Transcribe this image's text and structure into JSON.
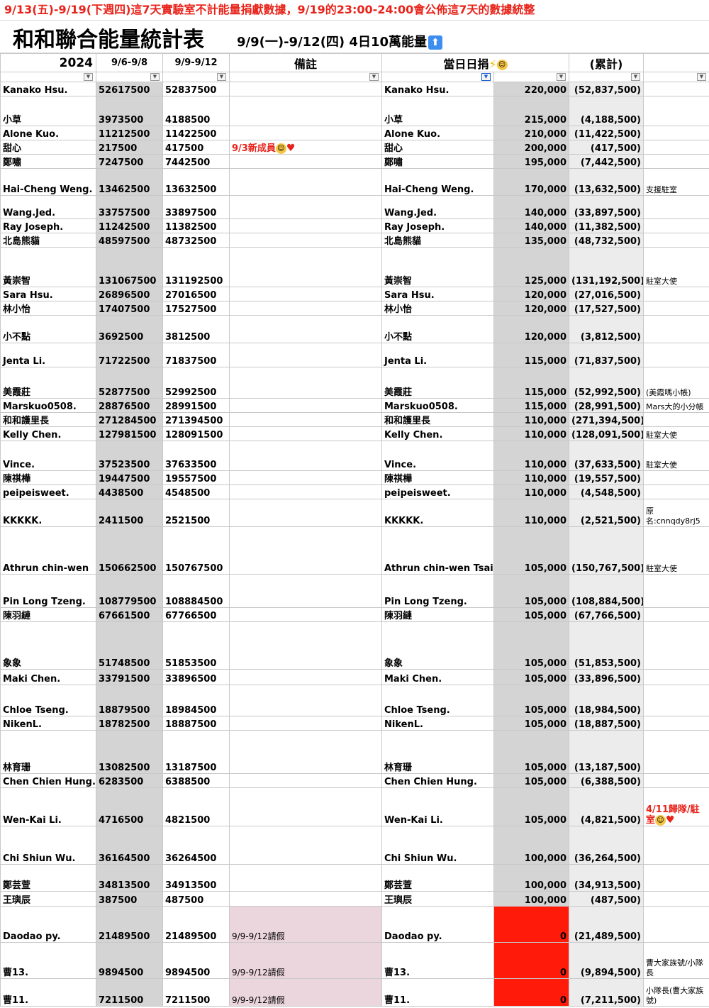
{
  "banner": "9/13(五)-9/19(下週四)這7天實驗室不計能量捐獻數據，9/19的23:00-24:00會公佈這7天的數據統整",
  "title": "和和聯合能量統計表",
  "subtitle": "9/9(一)-9/12(四) 4日10萬能量",
  "header": {
    "year": "2024",
    "col_a": "9/6-9/8",
    "col_b": "9/9-9/12",
    "remark": "備註",
    "daily": "當日日捐",
    "cumulative": "(累計)"
  },
  "icons": [
    "arrow-up-icon",
    "lightning-icon",
    "smiley-icon",
    "heart-icon",
    "filter-icon"
  ],
  "colors": {
    "red_cell": "#ff1a0a",
    "pink_cell": "#ecd6dd",
    "banner_text": "#e8231a",
    "gray_cell": "#d4d4d4"
  },
  "rows": [
    {
      "name": "Kanako Hsu.",
      "a": "52617500",
      "b": "52837500",
      "remark": "",
      "name2": "Kanako Hsu.",
      "daily": "220,000",
      "cum": "(52,837,500)",
      "side": ""
    },
    {
      "name": "小草",
      "a": "3973500",
      "b": "4188500",
      "remark": "",
      "name2": "小草",
      "daily": "215,000",
      "cum": "(4,188,500)",
      "side": ""
    },
    {
      "name": "Alone Kuo.",
      "a": "11212500",
      "b": "11422500",
      "remark": "",
      "name2": "Alone Kuo.",
      "daily": "210,000",
      "cum": "(11,422,500)",
      "side": ""
    },
    {
      "name": "甜心",
      "a": "217500",
      "b": "417500",
      "remark": "9/3新成員",
      "name2": "甜心",
      "daily": "200,000",
      "cum": "(417,500)",
      "side": ""
    },
    {
      "name": "鄭嘯",
      "a": "7247500",
      "b": "7442500",
      "remark": "",
      "name2": "鄭嘯",
      "daily": "195,000",
      "cum": "(7,442,500)",
      "side": ""
    },
    {
      "name": "Hai-Cheng Weng.",
      "a": "13462500",
      "b": "13632500",
      "remark": "",
      "name2": "Hai-Cheng Weng.",
      "daily": "170,000",
      "cum": "(13,632,500)",
      "side": "支援駐室"
    },
    {
      "name": "Wang.Jed.",
      "a": "33757500",
      "b": "33897500",
      "remark": "",
      "name2": "Wang.Jed.",
      "daily": "140,000",
      "cum": "(33,897,500)",
      "side": ""
    },
    {
      "name": "Ray Joseph.",
      "a": "11242500",
      "b": "11382500",
      "remark": "",
      "name2": "Ray Joseph.",
      "daily": "140,000",
      "cum": "(11,382,500)",
      "side": ""
    },
    {
      "name": "北島熊貓",
      "a": "48597500",
      "b": "48732500",
      "remark": "",
      "name2": "北島熊貓",
      "daily": "135,000",
      "cum": "(48,732,500)",
      "side": ""
    },
    {
      "name": "黃崇智",
      "a": "131067500",
      "b": "131192500",
      "remark": "",
      "name2": "黃崇智",
      "daily": "125,000",
      "cum": "(131,192,500)",
      "side": "駐室大使"
    },
    {
      "name": "Sara Hsu.",
      "a": "26896500",
      "b": "27016500",
      "remark": "",
      "name2": "Sara Hsu.",
      "daily": "120,000",
      "cum": "(27,016,500)",
      "side": ""
    },
    {
      "name": "林小怡",
      "a": "17407500",
      "b": "17527500",
      "remark": "",
      "name2": "林小怡",
      "daily": "120,000",
      "cum": "(17,527,500)",
      "side": ""
    },
    {
      "name": "小不點",
      "a": "3692500",
      "b": "3812500",
      "remark": "",
      "name2": "小不點",
      "daily": "120,000",
      "cum": "(3,812,500)",
      "side": ""
    },
    {
      "name": "Jenta Li.",
      "a": "71722500",
      "b": "71837500",
      "remark": "",
      "name2": "Jenta Li.",
      "daily": "115,000",
      "cum": "(71,837,500)",
      "side": ""
    },
    {
      "name": "美霞莊",
      "a": "52877500",
      "b": "52992500",
      "remark": "",
      "name2": "美霞莊",
      "daily": "115,000",
      "cum": "(52,992,500)",
      "side": "(美霞嗎小帳)"
    },
    {
      "name": "Marskuo0508.",
      "a": "28876500",
      "b": "28991500",
      "remark": "",
      "name2": "Marskuo0508.",
      "daily": "115,000",
      "cum": "(28,991,500)",
      "side": "Mars大的小分帳"
    },
    {
      "name": "和和護里長",
      "a": "271284500",
      "b": "271394500",
      "remark": "",
      "name2": "和和護里長",
      "daily": "110,000",
      "cum": "(271,394,500)",
      "side": ""
    },
    {
      "name": "Kelly Chen.",
      "a": "127981500",
      "b": "128091500",
      "remark": "",
      "name2": "Kelly Chen.",
      "daily": "110,000",
      "cum": "(128,091,500)",
      "side": "駐室大使"
    },
    {
      "name": "Vince.",
      "a": "37523500",
      "b": "37633500",
      "remark": "",
      "name2": "Vince.",
      "daily": "110,000",
      "cum": "(37,633,500)",
      "side": "駐室大使"
    },
    {
      "name": "陳祺樺",
      "a": "19447500",
      "b": "19557500",
      "remark": "",
      "name2": "陳祺樺",
      "daily": "110,000",
      "cum": "(19,557,500)",
      "side": ""
    },
    {
      "name": "peipeisweet.",
      "a": "4438500",
      "b": "4548500",
      "remark": "",
      "name2": "peipeisweet.",
      "daily": "110,000",
      "cum": "(4,548,500)",
      "side": ""
    },
    {
      "name": "KKKKK.",
      "a": "2411500",
      "b": "2521500",
      "remark": "",
      "name2": "KKKKK.",
      "daily": "110,000",
      "cum": "(2,521,500)",
      "side": "原名:cnnqdy8rj5"
    },
    {
      "name": "Athrun chin-wen",
      "a": "150662500",
      "b": "150767500",
      "remark": "",
      "name2": "Athrun chin-wen Tsai.",
      "daily": "105,000",
      "cum": "(150,767,500)",
      "side": "駐室大使"
    },
    {
      "name": "Pin Long Tzeng.",
      "a": "108779500",
      "b": "108884500",
      "remark": "",
      "name2": "Pin Long Tzeng.",
      "daily": "105,000",
      "cum": "(108,884,500)",
      "side": ""
    },
    {
      "name": "陳羽縺",
      "a": "67661500",
      "b": "67766500",
      "remark": "",
      "name2": "陳羽縺",
      "daily": "105,000",
      "cum": "(67,766,500)",
      "side": ""
    },
    {
      "name": "象象",
      "a": "51748500",
      "b": "51853500",
      "remark": "",
      "name2": "象象",
      "daily": "105,000",
      "cum": "(51,853,500)",
      "side": ""
    },
    {
      "name": "Maki Chen.",
      "a": "33791500",
      "b": "33896500",
      "remark": "",
      "name2": "Maki Chen.",
      "daily": "105,000",
      "cum": "(33,896,500)",
      "side": ""
    },
    {
      "name": "Chloe Tseng.",
      "a": "18879500",
      "b": "18984500",
      "remark": "",
      "name2": "Chloe Tseng.",
      "daily": "105,000",
      "cum": "(18,984,500)",
      "side": ""
    },
    {
      "name": "NikenL.",
      "a": "18782500",
      "b": "18887500",
      "remark": "",
      "name2": "NikenL.",
      "daily": "105,000",
      "cum": "(18,887,500)",
      "side": ""
    },
    {
      "name": "林育珊",
      "a": "13082500",
      "b": "13187500",
      "remark": "",
      "name2": "林育珊",
      "daily": "105,000",
      "cum": "(13,187,500)",
      "side": ""
    },
    {
      "name": "Chen Chien Hung.",
      "a": "6283500",
      "b": "6388500",
      "remark": "",
      "name2": "Chen Chien Hung.",
      "daily": "105,000",
      "cum": "(6,388,500)",
      "side": ""
    },
    {
      "name": "Wen-Kai Li.",
      "a": "4716500",
      "b": "4821500",
      "remark": "",
      "name2": "Wen-Kai Li.",
      "daily": "105,000",
      "cum": "(4,821,500)",
      "side": "4/11歸隊/駐室"
    },
    {
      "name": "Chi Shiun Wu.",
      "a": "36164500",
      "b": "36264500",
      "remark": "",
      "name2": "Chi Shiun Wu.",
      "daily": "100,000",
      "cum": "(36,264,500)",
      "side": ""
    },
    {
      "name": "鄭芸萱",
      "a": "34813500",
      "b": "34913500",
      "remark": "",
      "name2": "鄭芸萱",
      "daily": "100,000",
      "cum": "(34,913,500)",
      "side": ""
    },
    {
      "name": "王璵辰",
      "a": "387500",
      "b": "487500",
      "remark": "",
      "name2": "王璵辰",
      "daily": "100,000",
      "cum": "(487,500)",
      "side": ""
    },
    {
      "name": "Daodao py.",
      "a": "21489500",
      "b": "21489500",
      "remark": "9/9-9/12請假",
      "name2": "Daodao py.",
      "daily": "0",
      "cum": "(21,489,500)",
      "side": ""
    },
    {
      "name": "曹13.",
      "a": "9894500",
      "b": "9894500",
      "remark": "9/9-9/12請假",
      "name2": "曹13.",
      "daily": "0",
      "cum": "(9,894,500)",
      "side": "曹大家族號/小隊長"
    },
    {
      "name": "曹11.",
      "a": "7211500",
      "b": "7211500",
      "remark": "9/9-9/12請假",
      "name2": "曹11.",
      "daily": "0",
      "cum": "(7,211,500)",
      "side": "小隊長(曹大家族號)"
    }
  ]
}
